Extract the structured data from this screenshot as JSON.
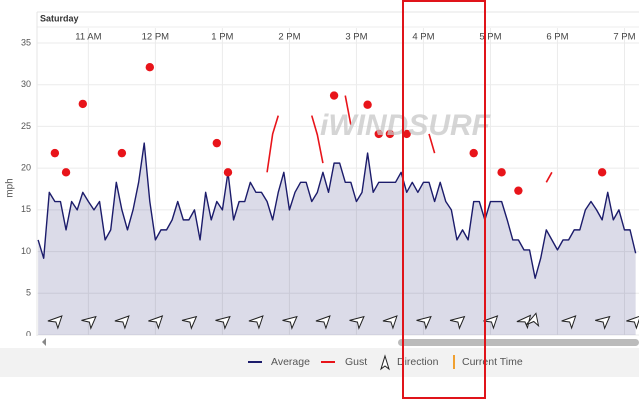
{
  "chart_data": {
    "type": "line",
    "day_label": "Saturday",
    "y_label": "mph",
    "watermark": "iWINDSURF",
    "x": [
      615,
      620,
      625,
      630,
      635,
      640,
      645,
      650,
      655,
      660,
      665,
      670,
      675,
      680,
      685,
      690,
      695,
      700,
      705,
      710,
      715,
      720,
      725,
      730,
      735,
      740,
      745,
      750,
      755,
      760,
      765,
      770,
      775,
      780,
      785,
      790,
      795,
      800,
      805,
      810,
      815,
      820,
      825,
      830,
      835,
      840,
      845,
      850,
      855,
      860,
      865,
      870,
      875,
      880,
      885,
      890,
      895,
      900,
      905,
      910,
      915,
      920,
      925,
      930,
      935,
      940,
      945,
      950,
      955,
      960,
      965,
      970,
      975,
      980,
      985,
      990,
      995,
      1000,
      1005,
      1010,
      1015,
      1020,
      1025,
      1030,
      1035,
      1040,
      1045,
      1050,
      1055,
      1060,
      1065,
      1070,
      1075,
      1080,
      1085,
      1090,
      1095,
      1100,
      1105,
      1110,
      1115,
      1120,
      1125,
      1130,
      1135,
      1140,
      1145,
      1150
    ],
    "xlim": [
      614,
      1153
    ],
    "xticks": [
      {
        "value": 660,
        "label": "11 AM"
      },
      {
        "value": 720,
        "label": "12 PM"
      },
      {
        "value": 780,
        "label": "1 PM"
      },
      {
        "value": 840,
        "label": "2 PM"
      },
      {
        "value": 900,
        "label": "3 PM"
      },
      {
        "value": 960,
        "label": "4 PM"
      },
      {
        "value": 1020,
        "label": "5 PM"
      },
      {
        "value": 1080,
        "label": "6 PM"
      },
      {
        "value": 1140,
        "label": "7 PM"
      }
    ],
    "ylim": [
      0,
      35
    ],
    "yticks": [
      0,
      5,
      10,
      15,
      20,
      25,
      30,
      35
    ],
    "grid": true,
    "series": [
      {
        "name": "Average",
        "color": "#1c1c6b",
        "values": [
          11.4,
          9.2,
          17.1,
          16,
          16,
          12.6,
          16,
          15,
          17.1,
          16,
          15,
          16,
          11.4,
          12.6,
          18.3,
          15,
          12.6,
          15,
          18.3,
          23,
          16,
          11.4,
          12.6,
          12.6,
          13.8,
          16,
          13.8,
          13.8,
          15,
          11.4,
          17.1,
          13.8,
          16,
          15,
          19.5,
          13.8,
          16,
          16,
          18.3,
          17.1,
          17.1,
          16,
          13.8,
          17.1,
          19.5,
          15,
          17.1,
          18.3,
          18.3,
          16,
          17.1,
          19.5,
          17.1,
          20.6,
          20.6,
          18.3,
          18.3,
          16,
          17.1,
          21.8,
          17.1,
          18.3,
          18.3,
          18.3,
          18.3,
          19.5,
          17.1,
          18.3,
          17.1,
          18.3,
          18.3,
          16,
          18.3,
          16,
          15,
          11.4,
          12.6,
          11.4,
          16,
          16,
          13.8,
          16,
          16,
          16,
          13.8,
          11.4,
          11.4,
          10.2,
          10.2,
          6.8,
          9.2,
          12.6,
          11.4,
          10.2,
          11.4,
          11.4,
          12.6,
          12.6,
          15,
          16,
          15,
          13.8,
          17.1,
          13.8,
          15,
          12.6,
          12.6,
          9.8
        ]
      },
      {
        "name": "Gust",
        "color": "#e8141a",
        "values": [
          null,
          null,
          null,
          21.8,
          null,
          19.5,
          null,
          null,
          27.7,
          null,
          null,
          null,
          null,
          null,
          null,
          21.8,
          null,
          null,
          null,
          null,
          32.1,
          null,
          null,
          null,
          null,
          null,
          null,
          null,
          null,
          null,
          null,
          null,
          23,
          null,
          19.5,
          null,
          null,
          null,
          null,
          null,
          null,
          19.5,
          24.1,
          26.3,
          null,
          null,
          null,
          null,
          null,
          26.3,
          24,
          20.6,
          null,
          28.7,
          null,
          28.7,
          25.2,
          null,
          null,
          27.6,
          null,
          24.1,
          null,
          24.1,
          null,
          null,
          24.1,
          null,
          null,
          null,
          24.1,
          21.8,
          null,
          null,
          null,
          null,
          null,
          null,
          21.8,
          null,
          null,
          null,
          null,
          19.5,
          null,
          null,
          17.3,
          null,
          null,
          null,
          null,
          18.3,
          19.5,
          null,
          null,
          null,
          null,
          null,
          null,
          null,
          null,
          19.5,
          null,
          null,
          null,
          null,
          null,
          null
        ]
      }
    ],
    "direction": {
      "name": "Direction",
      "x": [
        630,
        660,
        690,
        720,
        750,
        780,
        810,
        840,
        870,
        900,
        930,
        960,
        990,
        1020,
        1050,
        1058,
        1090,
        1120,
        1148
      ],
      "values": [
        200,
        205,
        200,
        200,
        205,
        205,
        200,
        205,
        200,
        205,
        200,
        205,
        205,
        200,
        195,
        170,
        200,
        205,
        200
      ]
    },
    "current_time": {
      "name": "Current Time",
      "color": "#f0a030"
    }
  }
}
